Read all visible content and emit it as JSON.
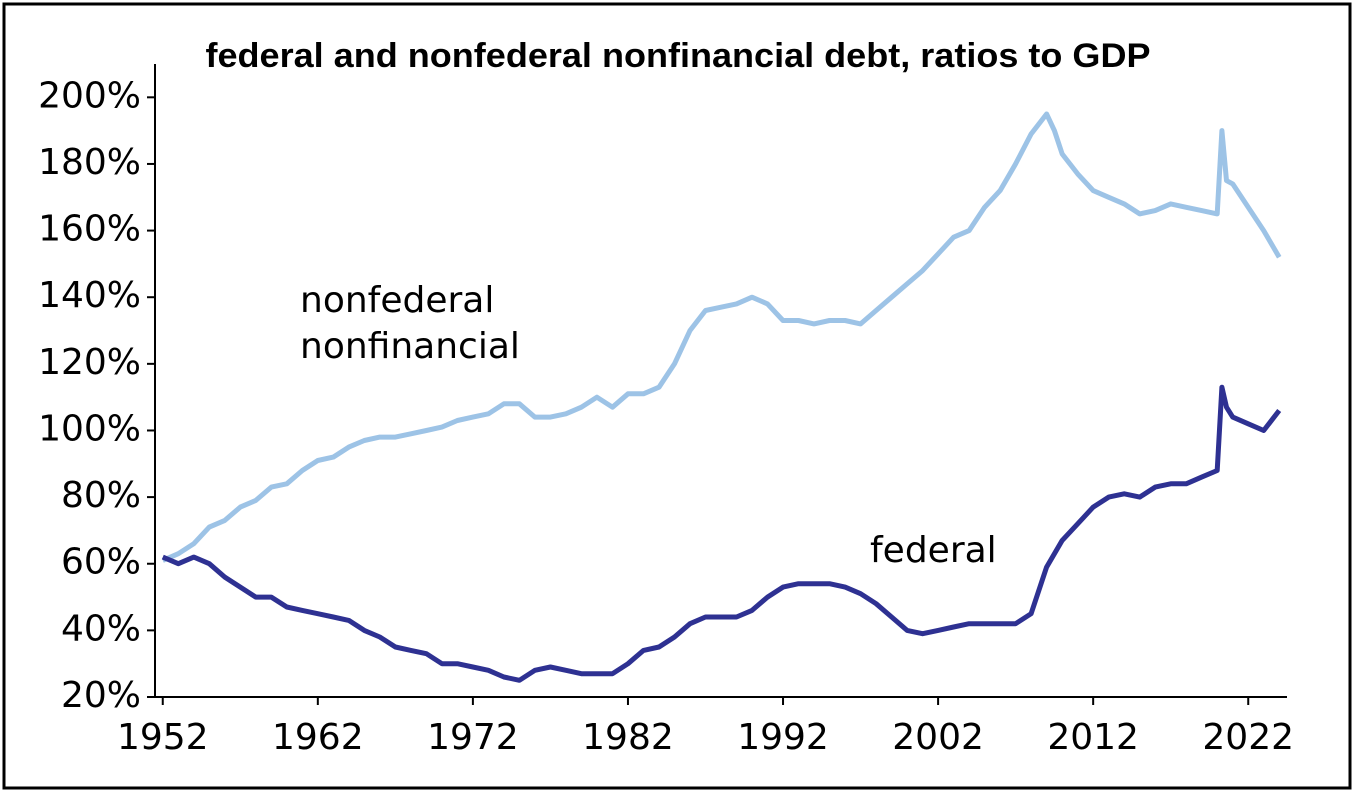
{
  "chart_data": {
    "type": "line",
    "title": "federal and nonfederal nonfinancial debt, ratios to GDP",
    "x": [
      1952,
      1953,
      1954,
      1955,
      1956,
      1957,
      1958,
      1959,
      1960,
      1961,
      1962,
      1963,
      1964,
      1965,
      1966,
      1967,
      1968,
      1969,
      1970,
      1971,
      1972,
      1973,
      1974,
      1975,
      1976,
      1977,
      1978,
      1979,
      1980,
      1981,
      1982,
      1983,
      1984,
      1985,
      1986,
      1987,
      1988,
      1989,
      1990,
      1991,
      1992,
      1993,
      1994,
      1995,
      1996,
      1997,
      1998,
      1999,
      2000,
      2001,
      2002,
      2003,
      2004,
      2005,
      2006,
      2007,
      2008,
      2009,
      2009.5,
      2010,
      2011,
      2012,
      2013,
      2014,
      2015,
      2016,
      2017,
      2018,
      2019,
      2020,
      2020.3,
      2020.6,
      2021,
      2022,
      2023,
      2024
    ],
    "series": [
      {
        "name": "nonfederal nonfinancial",
        "color": "#9dc3e6",
        "values": [
          61,
          63,
          66,
          71,
          73,
          77,
          79,
          83,
          84,
          88,
          91,
          92,
          95,
          97,
          98,
          98,
          99,
          100,
          101,
          103,
          104,
          105,
          108,
          108,
          104,
          104,
          105,
          107,
          110,
          107,
          111,
          111,
          113,
          120,
          130,
          136,
          137,
          138,
          140,
          138,
          133,
          133,
          132,
          133,
          133,
          132,
          136,
          140,
          144,
          148,
          153,
          158,
          160,
          167,
          172,
          180,
          189,
          195,
          190,
          183,
          177,
          172,
          170,
          168,
          165,
          166,
          168,
          167,
          166,
          165,
          190,
          175,
          174,
          167,
          160,
          152
        ]
      },
      {
        "name": "federal",
        "color": "#2e3192",
        "values": [
          62,
          60,
          62,
          60,
          56,
          53,
          50,
          50,
          47,
          46,
          45,
          44,
          43,
          40,
          38,
          35,
          34,
          33,
          30,
          30,
          29,
          28,
          26,
          25,
          28,
          29,
          28,
          27,
          27,
          27,
          30,
          34,
          35,
          38,
          42,
          44,
          44,
          44,
          46,
          50,
          53,
          54,
          54,
          54,
          53,
          51,
          48,
          44,
          40,
          39,
          40,
          41,
          42,
          42,
          42,
          42,
          45,
          59,
          63,
          67,
          72,
          77,
          80,
          81,
          80,
          83,
          84,
          84,
          86,
          88,
          113,
          107,
          104,
          102,
          100,
          106
        ]
      }
    ],
    "annotations": [
      [
        "nonfederal",
        "nonfinancial"
      ],
      [
        "federal"
      ]
    ],
    "xlim": [
      1951.5,
      2024.5
    ],
    "xticks": [
      1952,
      1962,
      1972,
      1982,
      1992,
      2002,
      2012,
      2022
    ],
    "ylim": [
      20,
      210
    ],
    "yticks": [
      {
        "value": 20,
        "label": "20%"
      },
      {
        "value": 40,
        "label": "40%"
      },
      {
        "value": 60,
        "label": "60%"
      },
      {
        "value": 80,
        "label": "80%"
      },
      {
        "value": 100,
        "label": "100%"
      },
      {
        "value": 120,
        "label": "120%"
      },
      {
        "value": 140,
        "label": "140%"
      },
      {
        "value": 160,
        "label": "160%"
      },
      {
        "value": 180,
        "label": "180%"
      },
      {
        "value": 200,
        "label": "200%"
      }
    ],
    "grid": false
  }
}
